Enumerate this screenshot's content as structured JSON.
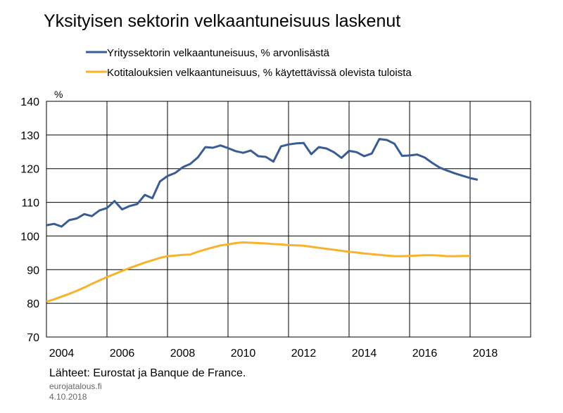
{
  "chart_data": {
    "type": "line",
    "title": "Yksityisen sektorin velkaantuneisuus laskenut",
    "y_unit": "%",
    "source": "Lähteet: Eurostat ja Banque de France.",
    "site": "eurojatalous.fi",
    "date": "4.10.2018",
    "xlim": [
      2004,
      2020
    ],
    "xticks": [
      2004,
      2006,
      2008,
      2010,
      2012,
      2014,
      2016,
      2018
    ],
    "ylim": [
      70,
      140
    ],
    "yticks": [
      70,
      80,
      90,
      100,
      110,
      120,
      130,
      140
    ],
    "grid": true,
    "series": [
      {
        "name": "Yritys­sektorin velkaantuneisuus, % arvonlisästä",
        "color": "#3a5c94",
        "x": [
          2004,
          2004.25,
          2004.5,
          2004.75,
          2005,
          2005.25,
          2005.5,
          2005.75,
          2006,
          2006.25,
          2006.5,
          2006.75,
          2007,
          2007.25,
          2007.5,
          2007.75,
          2008,
          2008.25,
          2008.5,
          2008.75,
          2009,
          2009.25,
          2009.5,
          2009.75,
          2010,
          2010.25,
          2010.5,
          2010.75,
          2011,
          2011.25,
          2011.5,
          2011.75,
          2012,
          2012.25,
          2012.5,
          2012.75,
          2013,
          2013.25,
          2013.5,
          2013.75,
          2014,
          2014.25,
          2014.5,
          2014.75,
          2015,
          2015.25,
          2015.5,
          2015.75,
          2016,
          2016.25,
          2016.5,
          2016.75,
          2017,
          2017.25,
          2017.5,
          2017.75,
          2018,
          2018.25
        ],
        "values": [
          103.2,
          103.6,
          102.8,
          104.7,
          105.2,
          106.5,
          105.9,
          107.6,
          108.3,
          110.4,
          107.9,
          108.9,
          109.5,
          112.2,
          111.2,
          116.2,
          117.8,
          118.7,
          120.4,
          121.4,
          123.3,
          126.4,
          126.2,
          126.9,
          126.1,
          125.2,
          124.7,
          125.4,
          123.7,
          123.5,
          122.1,
          126.6,
          127.2,
          127.5,
          127.6,
          124.3,
          126.4,
          126.0,
          124.9,
          123.2,
          125.3,
          124.9,
          123.7,
          124.5,
          128.8,
          128.5,
          127.4,
          123.8,
          123.9,
          124.2,
          123.3,
          121.7,
          120.3,
          119.4,
          118.6,
          117.9,
          117.2,
          116.7
        ]
      },
      {
        "name": "Kotitalouksien velkaantuneisuus, % käytettävissä olevista tuloista",
        "color": "#f7b32b",
        "x": [
          2004,
          2004.25,
          2004.5,
          2004.75,
          2005,
          2005.25,
          2005.5,
          2005.75,
          2006,
          2006.25,
          2006.5,
          2006.75,
          2007,
          2007.25,
          2007.5,
          2007.75,
          2008,
          2008.25,
          2008.5,
          2008.75,
          2009,
          2009.25,
          2009.5,
          2009.75,
          2010,
          2010.25,
          2010.5,
          2010.75,
          2011,
          2011.25,
          2011.5,
          2011.75,
          2012,
          2012.25,
          2012.5,
          2012.75,
          2013,
          2013.25,
          2013.5,
          2013.75,
          2014,
          2014.25,
          2014.5,
          2014.75,
          2015,
          2015.25,
          2015.5,
          2015.75,
          2016,
          2016.25,
          2016.5,
          2016.75,
          2017,
          2017.25,
          2017.5,
          2017.75,
          2018
        ],
        "values": [
          80.5,
          81.2,
          82.0,
          82.8,
          83.7,
          84.7,
          85.8,
          86.8,
          87.8,
          88.7,
          89.6,
          90.5,
          91.3,
          92.1,
          92.8,
          93.5,
          94.0,
          94.2,
          94.4,
          94.5,
          95.3,
          96.0,
          96.6,
          97.2,
          97.5,
          97.9,
          98.1,
          98.0,
          97.9,
          97.8,
          97.6,
          97.5,
          97.3,
          97.2,
          97.1,
          96.8,
          96.5,
          96.2,
          95.9,
          95.6,
          95.3,
          95.1,
          94.8,
          94.6,
          94.4,
          94.2,
          94.0,
          94.0,
          94.1,
          94.2,
          94.3,
          94.3,
          94.2,
          94.0,
          94.0,
          94.1,
          94.1
        ]
      }
    ]
  }
}
